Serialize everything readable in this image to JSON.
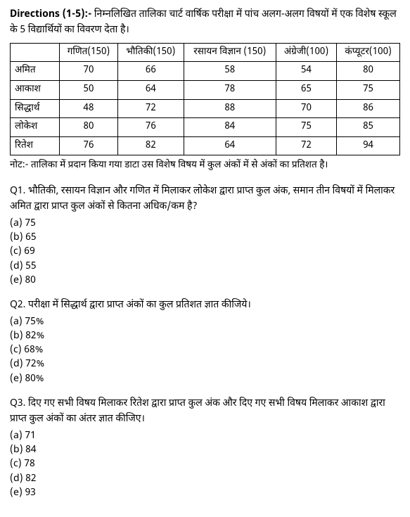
{
  "directions": {
    "label": "Directions (1-5):-",
    "text": "निम्नलिखित तालिका चार्ट वार्षिक परीक्षा में पांच अलग-अलग विषयों में एक विशेष स्कूल के 5 विद्यार्थियों का विवरण देता है।"
  },
  "table": {
    "headers": [
      "",
      "गणित(150)",
      "भौतिकी(150)",
      "रसायन विज्ञान (150)",
      "अंग्रेजी(100)",
      "कंप्यूटर(100)"
    ],
    "rows": [
      {
        "name": "अमित",
        "vals": [
          "70",
          "66",
          "58",
          "54",
          "80"
        ]
      },
      {
        "name": "आकाश",
        "vals": [
          "50",
          "64",
          "78",
          "65",
          "75"
        ]
      },
      {
        "name": "सिद्धार्थ",
        "vals": [
          "48",
          "72",
          "88",
          "70",
          "86"
        ]
      },
      {
        "name": "लोकेश",
        "vals": [
          "80",
          "76",
          "84",
          "75",
          "85"
        ]
      },
      {
        "name": "रितेश",
        "vals": [
          "76",
          "82",
          "64",
          "72",
          "94"
        ]
      }
    ]
  },
  "note": "नोट:- तालिका में प्रदान किया गया डाटा उस विशेष विषय में कुल अंकों में से अंकों का प्रतिशत है।",
  "questions": [
    {
      "label": "Q1.",
      "text": "भौतिकी, रसायन विज्ञान और गणित में मिलाकर लोकेश द्वारा प्राप्त कुल अंक,  समान तीन विषयों में मिलाकर अमित द्वारा प्राप्त कुल अंकों से कितना अधिक/कम है?",
      "options": [
        "(a) 75",
        "(b) 65",
        "(c) 69",
        "(d) 55",
        "(e) 80"
      ]
    },
    {
      "label": "Q2.",
      "text": "परीक्षा में सिद्धार्थ द्वारा प्राप्त अंकों का कुल प्रतिशत ज्ञात कीजिये।",
      "options": [
        "(a) 75%",
        "(b) 82%",
        "(c) 68%",
        "(d) 72%",
        "(e) 80%"
      ]
    },
    {
      "label": "Q3.",
      "text": "दिए गए सभी विषय मिलाकर रितेश द्वारा प्राप्त कुल अंक और दिए गए सभी विषय मिलाकर आकाश द्वारा प्राप्त कुल अंकों का अंतर ज्ञात कीजिए।",
      "options": [
        "(a) 71",
        "(b) 84",
        "(c) 78",
        "(d) 82",
        "(e) 93"
      ]
    }
  ]
}
